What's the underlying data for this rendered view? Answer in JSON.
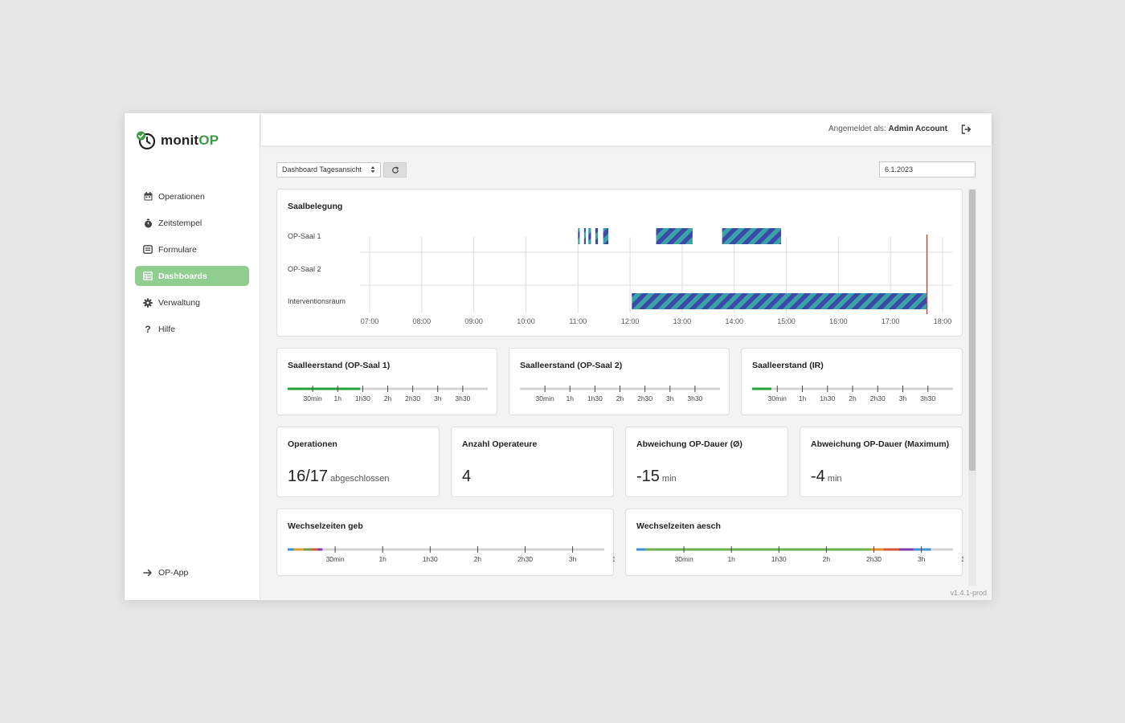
{
  "app": {
    "name_part1": "monit",
    "name_part2": "OP",
    "version": "v1.4.1-prod"
  },
  "colors": {
    "brand": "#3e9a45",
    "active_nav": "#8fce8f",
    "gantt_teal": "#3aa3a8",
    "gantt_purple": "#3b4aa8",
    "now_line": "#e03a3a"
  },
  "sidebar": {
    "items": [
      {
        "label": "Operationen",
        "icon": "calendar-icon"
      },
      {
        "label": "Zeitstempel",
        "icon": "stopwatch-icon"
      },
      {
        "label": "Formulare",
        "icon": "form-icon"
      },
      {
        "label": "Dashboards",
        "icon": "table-icon",
        "active": true
      },
      {
        "label": "Verwaltung",
        "icon": "gear-icon"
      },
      {
        "label": "Hilfe",
        "icon": "question-icon"
      }
    ],
    "bottom": {
      "label": "OP-App",
      "icon": "arrow-right-icon"
    }
  },
  "header": {
    "user_prefix": "Angemeldet als:",
    "user_name": "Admin Account"
  },
  "toolbar": {
    "dashboard_select": "Dashboard Tagesansicht",
    "date": "6.1.2023"
  },
  "gantt": {
    "title": "Saalbelegung",
    "rooms": [
      "OP-Saal 1",
      "OP-Saal 2",
      "Interventionsraum"
    ],
    "times": [
      "07:00",
      "08:00",
      "09:00",
      "10:00",
      "11:00",
      "12:00",
      "13:00",
      "14:00",
      "15:00",
      "16:00",
      "17:00",
      "18:00"
    ],
    "now": "17:42",
    "bookings": [
      {
        "room": "OP-Saal 1",
        "start": "11:00",
        "end": "11:02"
      },
      {
        "room": "OP-Saal 1",
        "start": "11:07",
        "end": "11:09"
      },
      {
        "room": "OP-Saal 1",
        "start": "11:12",
        "end": "11:15"
      },
      {
        "room": "OP-Saal 1",
        "start": "11:20",
        "end": "11:23"
      },
      {
        "room": "OP-Saal 1",
        "start": "11:29",
        "end": "11:35"
      },
      {
        "room": "OP-Saal 1",
        "start": "12:30",
        "end": "13:12"
      },
      {
        "room": "OP-Saal 1",
        "start": "13:46",
        "end": "14:54"
      },
      {
        "room": "Interventionsraum",
        "start": "12:02",
        "end": "17:42"
      }
    ]
  },
  "saalleerstand": [
    {
      "title": "Saalleerstand (OP-Saal 1)",
      "fill_minutes": 87,
      "color": "#22a33a"
    },
    {
      "title": "Saalleerstand (OP-Saal 2)",
      "fill_minutes": 0,
      "color": "#22a33a"
    },
    {
      "title": "Saalleerstand (IR)",
      "fill_minutes": 23,
      "color": "#22a33a"
    }
  ],
  "scale_ticks": [
    "30min",
    "1h",
    "1h30",
    "2h",
    "2h30",
    "3h",
    "3h30"
  ],
  "stats": [
    {
      "title": "Operationen",
      "value": "16/17",
      "unit": "abgeschlossen"
    },
    {
      "title": "Anzahl Operateure",
      "value": "4",
      "unit": ""
    },
    {
      "title": "Abweichung OP-Dauer (Ø)",
      "value": "-15",
      "unit": "min"
    },
    {
      "title": "Abweichung OP-Dauer (Maximum)",
      "value": "-4",
      "unit": "min"
    }
  ],
  "wechselzeiten": [
    {
      "title": "Wechselzeiten geb",
      "segments": [
        {
          "from": 0,
          "to": 4,
          "color": "#3d8fd6"
        },
        {
          "from": 4,
          "to": 10,
          "color": "#e0a030"
        },
        {
          "from": 10,
          "to": 15,
          "color": "#7a9a3a"
        },
        {
          "from": 15,
          "to": 19,
          "color": "#d6553a"
        },
        {
          "from": 19,
          "to": 22,
          "color": "#7b3ab0"
        }
      ]
    },
    {
      "title": "Wechselzeiten aesch",
      "segments": [
        {
          "from": 0,
          "to": 6,
          "color": "#3d8fd6"
        },
        {
          "from": 6,
          "to": 148,
          "color": "#6ab04c"
        },
        {
          "from": 148,
          "to": 156,
          "color": "#e08b30"
        },
        {
          "from": 156,
          "to": 166,
          "color": "#d6553a"
        },
        {
          "from": 166,
          "to": 175,
          "color": "#7b3ab0"
        },
        {
          "from": 175,
          "to": 186,
          "color": "#3d8fd6"
        }
      ]
    }
  ]
}
